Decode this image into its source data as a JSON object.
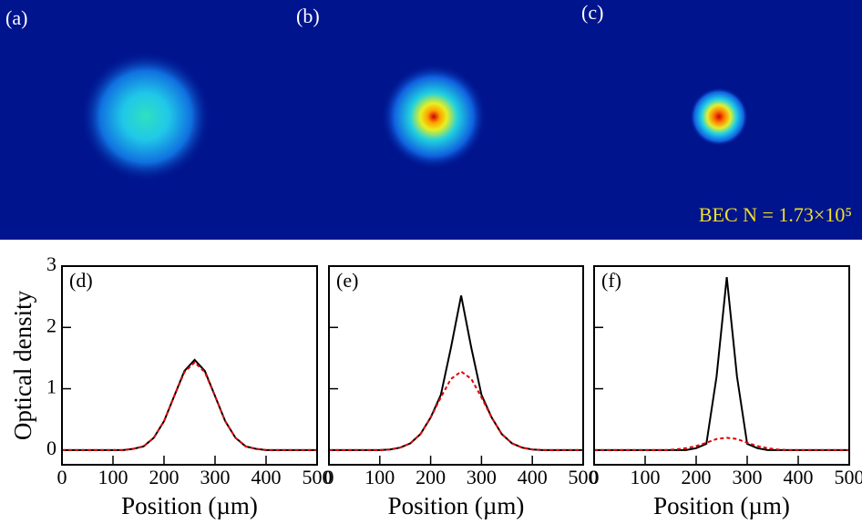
{
  "images": {
    "panels": [
      "(a)",
      "(b)",
      "(c)"
    ],
    "annotation": "BEC N = 1.73×10⁵"
  },
  "chart_data": [
    {
      "type": "line",
      "label": "(d)",
      "ylabel": "Optical density",
      "xlabel": "Position (µm)",
      "show_ytick_labels": true,
      "x": [
        0,
        20,
        40,
        60,
        80,
        100,
        120,
        140,
        160,
        180,
        200,
        220,
        240,
        260,
        280,
        300,
        320,
        340,
        360,
        380,
        400,
        420,
        440,
        460,
        480,
        500
      ],
      "series": [
        {
          "color": "#000000",
          "style": "solid",
          "values": [
            0,
            0,
            0,
            0,
            0,
            0,
            0,
            0.02,
            0.06,
            0.2,
            0.47,
            0.88,
            1.29,
            1.47,
            1.29,
            0.88,
            0.47,
            0.2,
            0.06,
            0.02,
            0,
            0,
            0,
            0,
            0,
            0
          ]
        },
        {
          "color": "#e00000",
          "style": "dashed",
          "values": [
            0,
            0,
            0,
            0,
            0,
            0,
            0,
            0.02,
            0.06,
            0.2,
            0.47,
            0.88,
            1.27,
            1.43,
            1.27,
            0.88,
            0.47,
            0.2,
            0.06,
            0.02,
            0,
            0,
            0,
            0,
            0,
            0
          ]
        }
      ],
      "xlim": [
        0,
        500
      ],
      "xticks": [
        0,
        100,
        200,
        300,
        400,
        500
      ],
      "ylim": [
        -0.24,
        3
      ],
      "yticks": [
        0,
        1,
        2,
        3
      ]
    },
    {
      "type": "line",
      "label": "(e)",
      "xlabel": "Position (µm)",
      "show_ytick_labels": false,
      "x": [
        0,
        20,
        40,
        60,
        80,
        100,
        120,
        140,
        160,
        180,
        200,
        220,
        240,
        260,
        280,
        300,
        320,
        340,
        360,
        380,
        400,
        420,
        440,
        460,
        480,
        500
      ],
      "series": [
        {
          "color": "#000000",
          "style": "solid",
          "values": [
            0,
            0,
            0,
            0,
            0,
            0,
            0.01,
            0.04,
            0.11,
            0.26,
            0.53,
            0.9,
            1.67,
            2.52,
            1.67,
            0.9,
            0.53,
            0.26,
            0.11,
            0.04,
            0.01,
            0,
            0,
            0,
            0,
            0
          ]
        },
        {
          "color": "#e00000",
          "style": "dashed",
          "values": [
            0,
            0,
            0,
            0,
            0,
            0,
            0.01,
            0.04,
            0.11,
            0.26,
            0.53,
            0.86,
            1.16,
            1.28,
            1.16,
            0.86,
            0.53,
            0.26,
            0.11,
            0.04,
            0.01,
            0,
            0,
            0,
            0,
            0
          ]
        }
      ],
      "xlim": [
        0,
        500
      ],
      "xticks": [
        0,
        100,
        200,
        300,
        400,
        500
      ],
      "ylim": [
        -0.24,
        3
      ],
      "yticks": [
        0,
        1,
        2,
        3
      ]
    },
    {
      "type": "line",
      "label": "(f)",
      "xlabel": "Position (µm)",
      "show_ytick_labels": false,
      "x": [
        0,
        20,
        40,
        60,
        80,
        100,
        120,
        140,
        160,
        180,
        200,
        220,
        240,
        260,
        280,
        300,
        320,
        340,
        360,
        380,
        400,
        420,
        440,
        460,
        480,
        500
      ],
      "series": [
        {
          "color": "#000000",
          "style": "solid",
          "values": [
            0,
            0,
            0,
            0,
            0,
            0,
            0,
            0,
            0,
            0,
            0.03,
            0.1,
            1.2,
            2.82,
            1.2,
            0.1,
            0.03,
            0,
            0,
            0,
            0,
            0,
            0,
            0,
            0,
            0
          ]
        },
        {
          "color": "#e00000",
          "style": "dashed",
          "values": [
            0,
            0,
            0,
            0,
            0,
            0,
            0,
            0,
            0.01,
            0.03,
            0.065,
            0.12,
            0.18,
            0.2,
            0.18,
            0.12,
            0.065,
            0.03,
            0.01,
            0,
            0,
            0,
            0,
            0,
            0,
            0
          ]
        }
      ],
      "xlim": [
        0,
        500
      ],
      "xticks": [
        0,
        100,
        200,
        300,
        400,
        500
      ],
      "ylim": [
        -0.24,
        3
      ],
      "yticks": [
        0,
        1,
        2,
        3
      ]
    }
  ]
}
